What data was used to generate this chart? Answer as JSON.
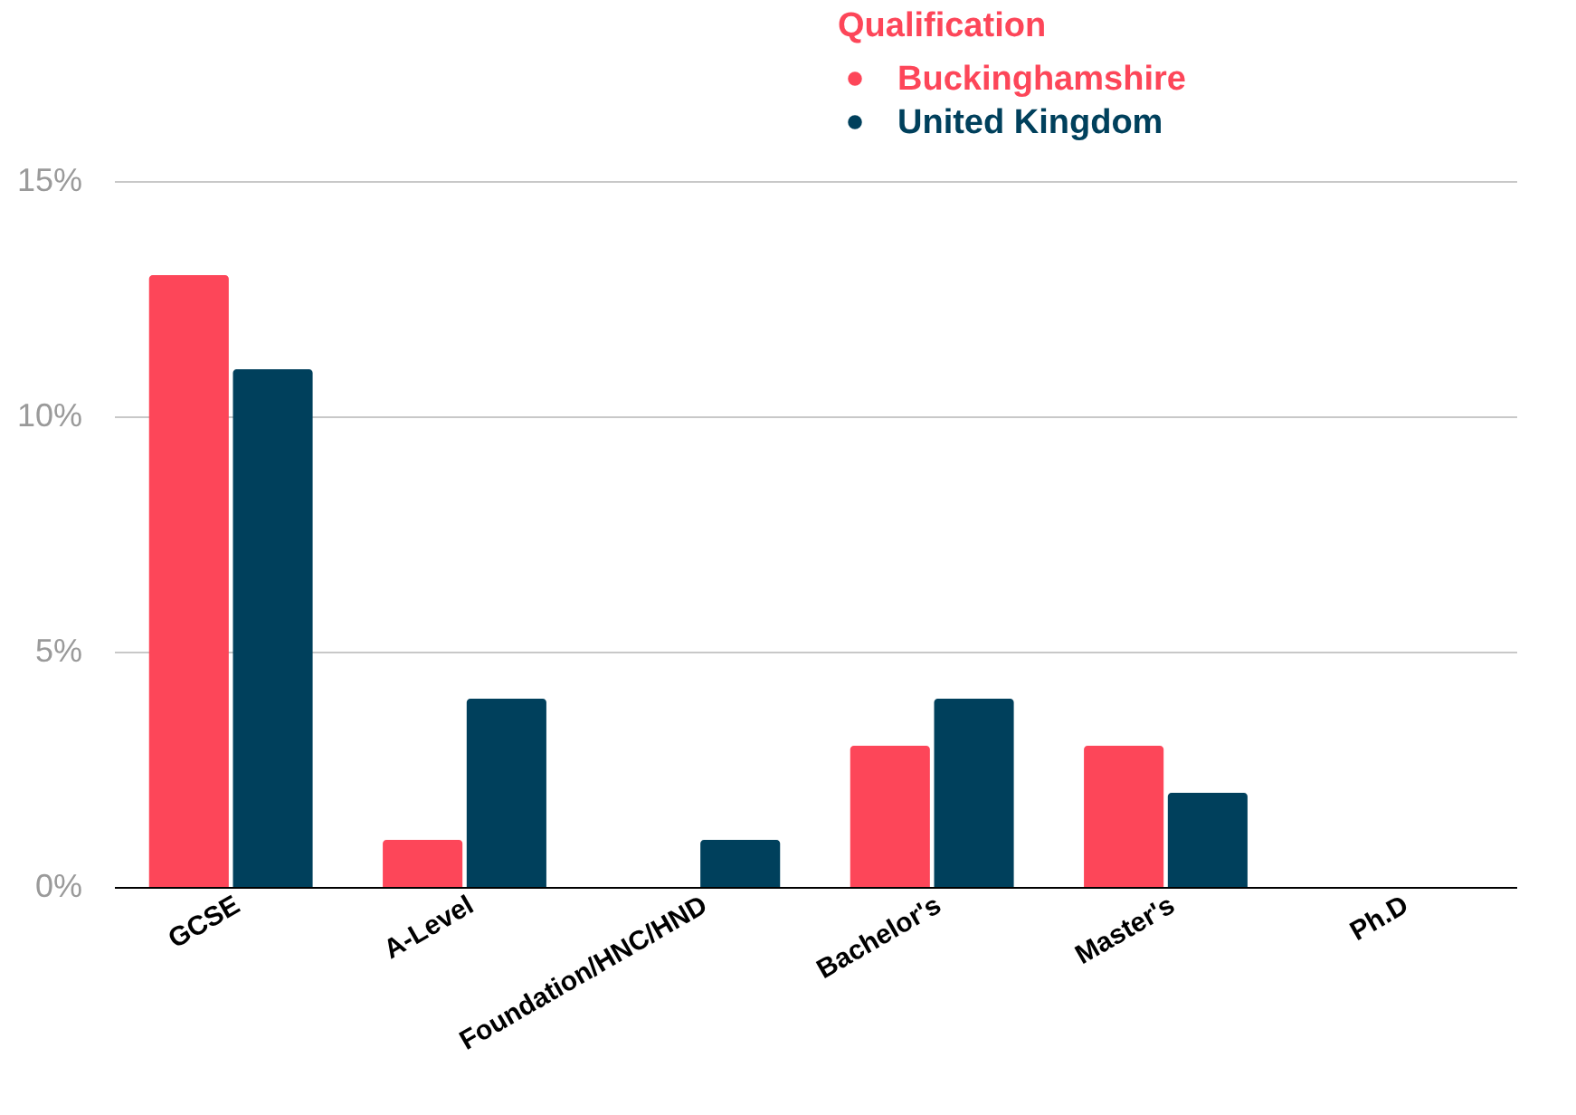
{
  "chart_data": {
    "type": "bar",
    "legend_title": "Qualification",
    "categories": [
      "GCSE",
      "A-Level",
      "Foundation/HNC/HND",
      "Bachelor's",
      "Master's",
      "Ph.D"
    ],
    "series": [
      {
        "name": "Buckinghamshire",
        "color": "#fd4659",
        "values": [
          13,
          1,
          0,
          3,
          3,
          0
        ]
      },
      {
        "name": "United Kingdom",
        "color": "#00405c",
        "values": [
          11,
          4,
          1,
          4,
          2,
          0
        ]
      }
    ],
    "ylim": [
      0,
      15
    ],
    "yticks": [
      {
        "value": 0,
        "label": "0%"
      },
      {
        "value": 5,
        "label": "5%"
      },
      {
        "value": 10,
        "label": "10%"
      },
      {
        "value": 15,
        "label": "15%"
      }
    ],
    "grid": "y",
    "legend": "top"
  }
}
